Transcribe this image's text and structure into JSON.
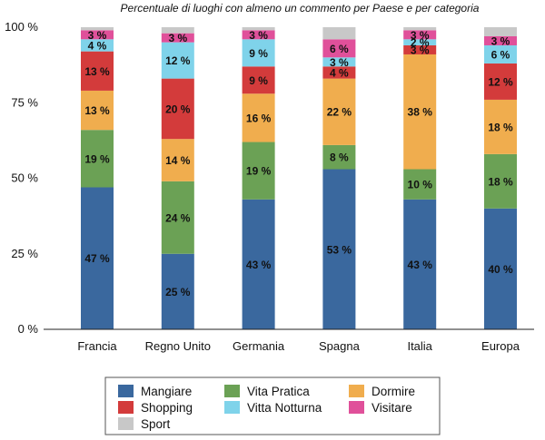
{
  "chart_data": {
    "type": "bar",
    "stacked": true,
    "title": "Percentuale di luoghi con almeno un commento per Paese e per categoria",
    "xlabel": "",
    "ylabel": "",
    "ylim": [
      0,
      100
    ],
    "yticks": [
      "0 %",
      "25 %",
      "50 %",
      "75 %",
      "100 %"
    ],
    "grid": false,
    "legend_position": "bottom",
    "categories": [
      "Francia",
      "Regno Unito",
      "Germania",
      "Spagna",
      "Italia",
      "Europa"
    ],
    "series": [
      {
        "name": "Mangiare",
        "color": "#3a689e",
        "values": [
          47,
          25,
          43,
          53,
          43,
          40
        ],
        "labels": [
          "47 %",
          "25 %",
          "43 %",
          "53 %",
          "43 %",
          "40 %"
        ]
      },
      {
        "name": "Vita Pratica",
        "color": "#6ba155",
        "values": [
          19,
          24,
          19,
          8,
          10,
          18
        ],
        "labels": [
          "19 %",
          "24 %",
          "19 %",
          "8 %",
          "10 %",
          "18 %"
        ]
      },
      {
        "name": "Dormire",
        "color": "#f0ad4e",
        "values": [
          13,
          14,
          16,
          22,
          38,
          18
        ],
        "labels": [
          "13 %",
          "14 %",
          "16 %",
          "22 %",
          "38 %",
          "18 %"
        ]
      },
      {
        "name": "Shopping",
        "color": "#d33b3b",
        "values": [
          13,
          20,
          9,
          4,
          3,
          12
        ],
        "labels": [
          "13 %",
          "20 %",
          "9 %",
          "4 %",
          "3 %",
          "12 %"
        ]
      },
      {
        "name": "Vitta Notturna",
        "color": "#7fd3ea",
        "values": [
          4,
          12,
          9,
          3,
          2,
          6
        ],
        "labels": [
          "4 %",
          "12 %",
          "9 %",
          "3 %",
          "2 %",
          "6 %"
        ]
      },
      {
        "name": "Visitare",
        "color": "#e0509a",
        "values": [
          3,
          3,
          3,
          6,
          3,
          3
        ],
        "labels": [
          "3 %",
          "3 %",
          "3 %",
          "6 %",
          "3 %",
          "3 %"
        ]
      },
      {
        "name": "Sport",
        "color": "#c8c8c8",
        "values": [
          1,
          2,
          1,
          4,
          1,
          3
        ],
        "labels": [
          "",
          "",
          "",
          "",
          "",
          ""
        ]
      }
    ]
  }
}
